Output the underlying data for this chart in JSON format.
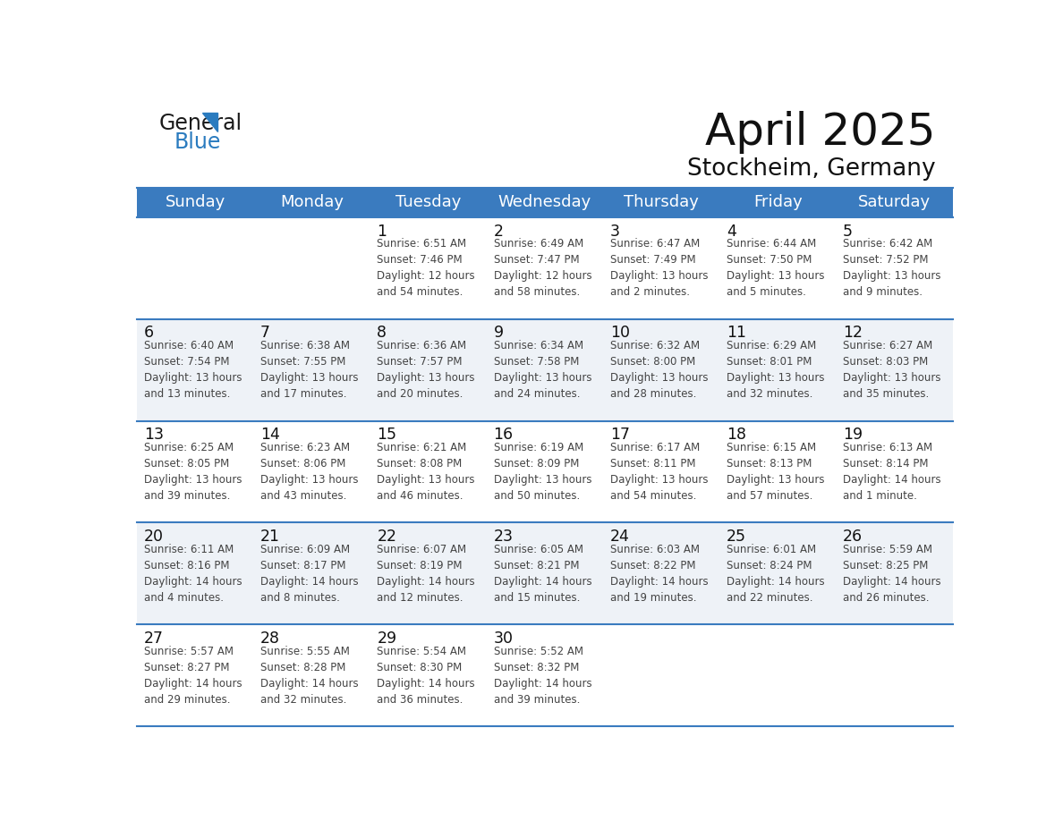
{
  "title": "April 2025",
  "subtitle": "Stockheim, Germany",
  "header_bg_color": "#3a7bbf",
  "header_text_color": "#ffffff",
  "day_names": [
    "Sunday",
    "Monday",
    "Tuesday",
    "Wednesday",
    "Thursday",
    "Friday",
    "Saturday"
  ],
  "cell_bg_color": "#ffffff",
  "cell_alt_bg_color": "#eef2f7",
  "text_color": "#444444",
  "day_num_color": "#111111",
  "line_color": "#3a7bbf",
  "weeks": [
    [
      {
        "day": null,
        "info": null
      },
      {
        "day": null,
        "info": null
      },
      {
        "day": 1,
        "info": "Sunrise: 6:51 AM\nSunset: 7:46 PM\nDaylight: 12 hours\nand 54 minutes."
      },
      {
        "day": 2,
        "info": "Sunrise: 6:49 AM\nSunset: 7:47 PM\nDaylight: 12 hours\nand 58 minutes."
      },
      {
        "day": 3,
        "info": "Sunrise: 6:47 AM\nSunset: 7:49 PM\nDaylight: 13 hours\nand 2 minutes."
      },
      {
        "day": 4,
        "info": "Sunrise: 6:44 AM\nSunset: 7:50 PM\nDaylight: 13 hours\nand 5 minutes."
      },
      {
        "day": 5,
        "info": "Sunrise: 6:42 AM\nSunset: 7:52 PM\nDaylight: 13 hours\nand 9 minutes."
      }
    ],
    [
      {
        "day": 6,
        "info": "Sunrise: 6:40 AM\nSunset: 7:54 PM\nDaylight: 13 hours\nand 13 minutes."
      },
      {
        "day": 7,
        "info": "Sunrise: 6:38 AM\nSunset: 7:55 PM\nDaylight: 13 hours\nand 17 minutes."
      },
      {
        "day": 8,
        "info": "Sunrise: 6:36 AM\nSunset: 7:57 PM\nDaylight: 13 hours\nand 20 minutes."
      },
      {
        "day": 9,
        "info": "Sunrise: 6:34 AM\nSunset: 7:58 PM\nDaylight: 13 hours\nand 24 minutes."
      },
      {
        "day": 10,
        "info": "Sunrise: 6:32 AM\nSunset: 8:00 PM\nDaylight: 13 hours\nand 28 minutes."
      },
      {
        "day": 11,
        "info": "Sunrise: 6:29 AM\nSunset: 8:01 PM\nDaylight: 13 hours\nand 32 minutes."
      },
      {
        "day": 12,
        "info": "Sunrise: 6:27 AM\nSunset: 8:03 PM\nDaylight: 13 hours\nand 35 minutes."
      }
    ],
    [
      {
        "day": 13,
        "info": "Sunrise: 6:25 AM\nSunset: 8:05 PM\nDaylight: 13 hours\nand 39 minutes."
      },
      {
        "day": 14,
        "info": "Sunrise: 6:23 AM\nSunset: 8:06 PM\nDaylight: 13 hours\nand 43 minutes."
      },
      {
        "day": 15,
        "info": "Sunrise: 6:21 AM\nSunset: 8:08 PM\nDaylight: 13 hours\nand 46 minutes."
      },
      {
        "day": 16,
        "info": "Sunrise: 6:19 AM\nSunset: 8:09 PM\nDaylight: 13 hours\nand 50 minutes."
      },
      {
        "day": 17,
        "info": "Sunrise: 6:17 AM\nSunset: 8:11 PM\nDaylight: 13 hours\nand 54 minutes."
      },
      {
        "day": 18,
        "info": "Sunrise: 6:15 AM\nSunset: 8:13 PM\nDaylight: 13 hours\nand 57 minutes."
      },
      {
        "day": 19,
        "info": "Sunrise: 6:13 AM\nSunset: 8:14 PM\nDaylight: 14 hours\nand 1 minute."
      }
    ],
    [
      {
        "day": 20,
        "info": "Sunrise: 6:11 AM\nSunset: 8:16 PM\nDaylight: 14 hours\nand 4 minutes."
      },
      {
        "day": 21,
        "info": "Sunrise: 6:09 AM\nSunset: 8:17 PM\nDaylight: 14 hours\nand 8 minutes."
      },
      {
        "day": 22,
        "info": "Sunrise: 6:07 AM\nSunset: 8:19 PM\nDaylight: 14 hours\nand 12 minutes."
      },
      {
        "day": 23,
        "info": "Sunrise: 6:05 AM\nSunset: 8:21 PM\nDaylight: 14 hours\nand 15 minutes."
      },
      {
        "day": 24,
        "info": "Sunrise: 6:03 AM\nSunset: 8:22 PM\nDaylight: 14 hours\nand 19 minutes."
      },
      {
        "day": 25,
        "info": "Sunrise: 6:01 AM\nSunset: 8:24 PM\nDaylight: 14 hours\nand 22 minutes."
      },
      {
        "day": 26,
        "info": "Sunrise: 5:59 AM\nSunset: 8:25 PM\nDaylight: 14 hours\nand 26 minutes."
      }
    ],
    [
      {
        "day": 27,
        "info": "Sunrise: 5:57 AM\nSunset: 8:27 PM\nDaylight: 14 hours\nand 29 minutes."
      },
      {
        "day": 28,
        "info": "Sunrise: 5:55 AM\nSunset: 8:28 PM\nDaylight: 14 hours\nand 32 minutes."
      },
      {
        "day": 29,
        "info": "Sunrise: 5:54 AM\nSunset: 8:30 PM\nDaylight: 14 hours\nand 36 minutes."
      },
      {
        "day": 30,
        "info": "Sunrise: 5:52 AM\nSunset: 8:32 PM\nDaylight: 14 hours\nand 39 minutes."
      },
      {
        "day": null,
        "info": null
      },
      {
        "day": null,
        "info": null
      },
      {
        "day": null,
        "info": null
      }
    ]
  ],
  "logo_color_general": "#1a1a1a",
  "logo_color_blue": "#2a7bbf",
  "logo_triangle_color": "#2a7bbf",
  "fig_width": 11.88,
  "fig_height": 9.18,
  "dpi": 100
}
